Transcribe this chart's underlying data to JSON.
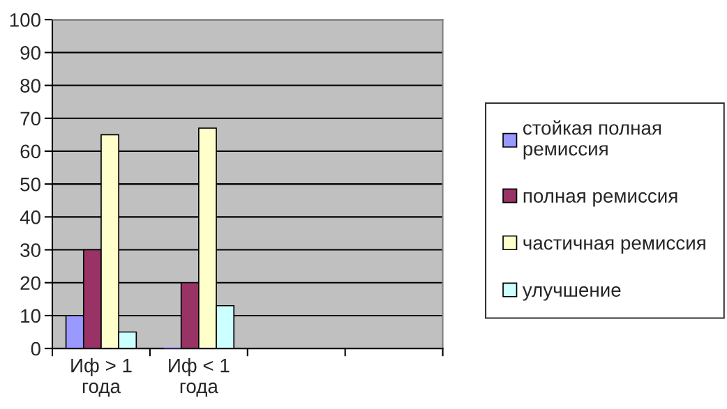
{
  "chart_data": {
    "type": "bar",
    "categories": [
      "Иф > 1\nгода",
      "Иф < 1\nгода",
      null,
      null
    ],
    "series": [
      {
        "name": "стойкая полная\nремиссия",
        "color": "#9999ff",
        "values": [
          10,
          0,
          null,
          null
        ]
      },
      {
        "name": "полная ремиссия",
        "color": "#993366",
        "values": [
          30,
          20,
          null,
          null
        ]
      },
      {
        "name": "частичная ремиссия",
        "color": "#ffffcc",
        "values": [
          65,
          67,
          null,
          null
        ]
      },
      {
        "name": "улучшение",
        "color": "#ccffff",
        "values": [
          5,
          13,
          null,
          null
        ]
      }
    ],
    "ylim": [
      0,
      100
    ],
    "yticks": [
      0,
      10,
      20,
      30,
      40,
      50,
      60,
      70,
      80,
      90,
      100
    ],
    "grid": "y",
    "legend": "right"
  }
}
